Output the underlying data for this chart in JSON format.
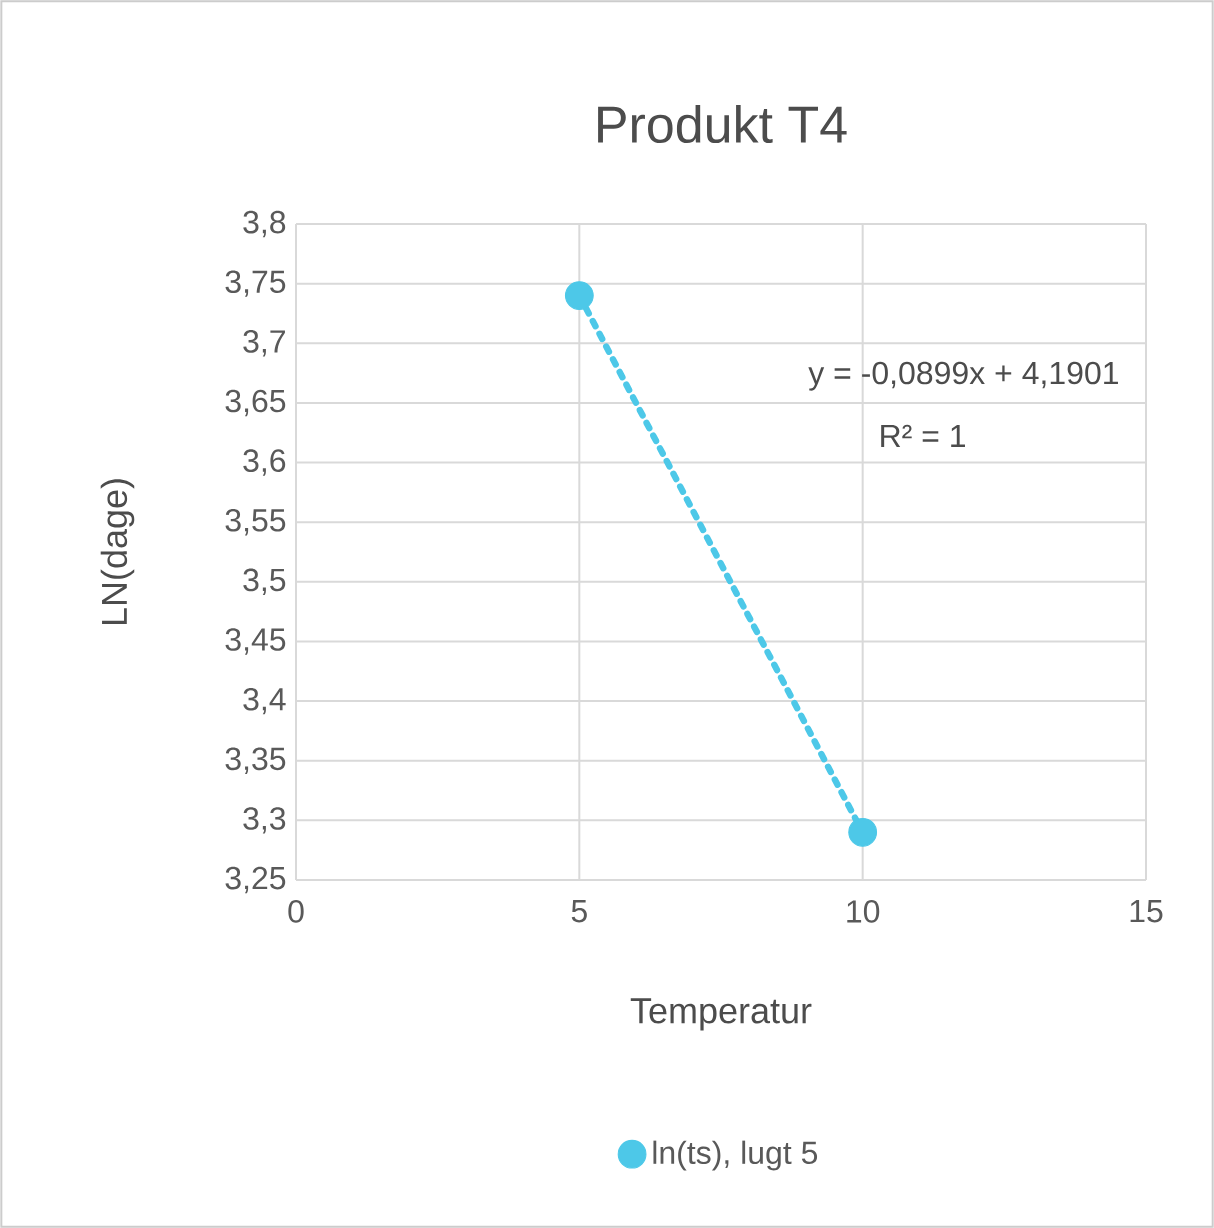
{
  "chart_data": {
    "type": "scatter",
    "title": "Produkt T4",
    "xlabel": "Temperatur",
    "ylabel": "LN(dage)",
    "x": [
      5,
      10
    ],
    "series": [
      {
        "name": "ln(ts), lugt 5",
        "color": "#4dc8e8",
        "values": [
          3.74,
          3.29
        ],
        "marker": "circle"
      },
      {
        "type": "line",
        "color": "#4dc8e8",
        "x": [
          5,
          10
        ],
        "values": [
          3.74,
          3.29
        ],
        "line_style": "dotted",
        "marker": "none"
      }
    ],
    "annotations": [
      "y = -0,0899x + 4,1901",
      "R² = 1"
    ],
    "xlim": [
      0,
      15
    ],
    "xticks": [
      0,
      5,
      10,
      15
    ],
    "ylim": [
      3.25,
      3.8
    ],
    "yticks": [
      {
        "value": 3.25,
        "label": "3,25"
      },
      {
        "value": 3.3,
        "label": "3,3"
      },
      {
        "value": 3.35,
        "label": "3,35"
      },
      {
        "value": 3.4,
        "label": "3,4"
      },
      {
        "value": 3.45,
        "label": "3,45"
      },
      {
        "value": 3.5,
        "label": "3,5"
      },
      {
        "value": 3.55,
        "label": "3,55"
      },
      {
        "value": 3.6,
        "label": "3,6"
      },
      {
        "value": 3.65,
        "label": "3,65"
      },
      {
        "value": 3.7,
        "label": "3,7"
      },
      {
        "value": 3.75,
        "label": "3,75"
      },
      {
        "value": 3.8,
        "label": "3,8"
      }
    ],
    "grid": true,
    "legend": "bottom"
  }
}
